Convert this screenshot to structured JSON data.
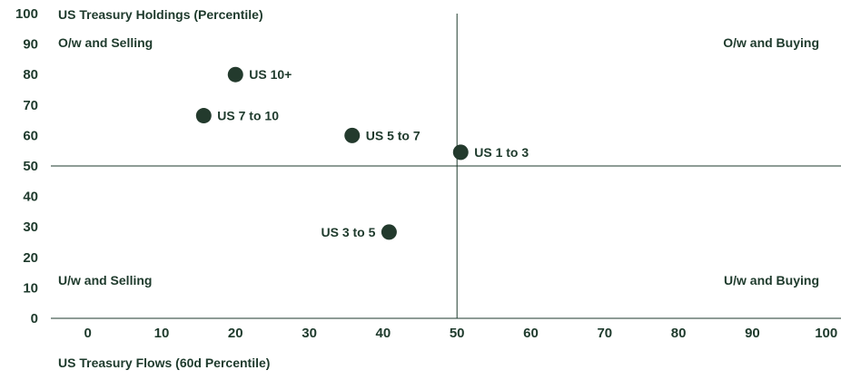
{
  "chart_data": {
    "type": "scatter",
    "title": "",
    "xlabel": "US Treasury Flows (60d Percentile)",
    "ylabel": "US Treasury Holdings (Percentile)",
    "xlim": [
      -5,
      102
    ],
    "ylim": [
      0,
      100
    ],
    "xticks": [
      0,
      10,
      20,
      30,
      40,
      50,
      60,
      70,
      80,
      90,
      100
    ],
    "yticks": [
      0,
      10,
      20,
      30,
      40,
      50,
      60,
      70,
      80,
      90,
      100
    ],
    "divider": {
      "x": 50,
      "y": 50
    },
    "grid": false,
    "point_color": "#233a2d",
    "text_color": "#1e3a2c",
    "quadrants": [
      {
        "label": "O/w and Selling",
        "position": "top-left"
      },
      {
        "label": "O/w and Buying",
        "position": "top-right"
      },
      {
        "label": "U/w and Selling",
        "position": "bottom-left"
      },
      {
        "label": "U/w and Buying",
        "position": "bottom-right"
      }
    ],
    "points": [
      {
        "label": "US 10+",
        "x": 20,
        "y": 80,
        "label_side": "right"
      },
      {
        "label": "US 7 to 10",
        "x": 15.7,
        "y": 66.5,
        "label_side": "right"
      },
      {
        "label": "US 5 to 7",
        "x": 35.8,
        "y": 60,
        "label_side": "right"
      },
      {
        "label": "US 1 to 3",
        "x": 50.5,
        "y": 54.5,
        "label_side": "right"
      },
      {
        "label": "US 3 to 5",
        "x": 40.8,
        "y": 28.3,
        "label_side": "left"
      }
    ]
  }
}
